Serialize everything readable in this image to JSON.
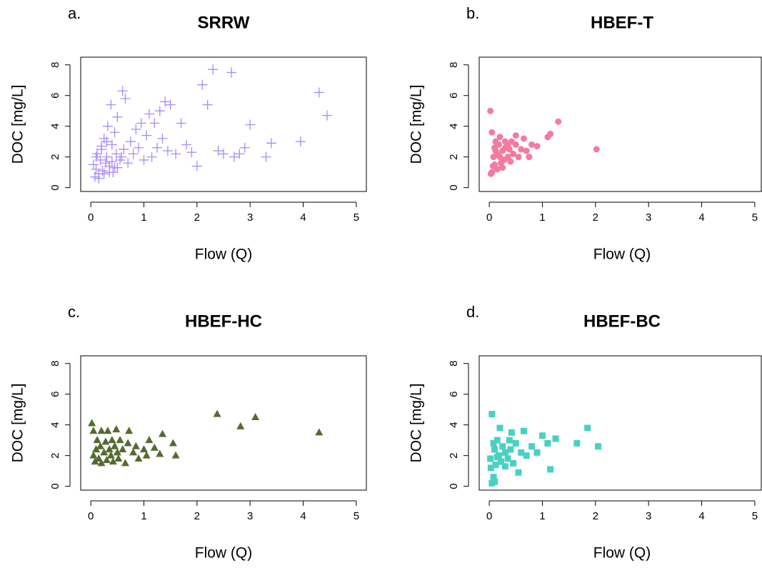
{
  "chart_data": [
    {
      "type": "scatter",
      "label": "a.",
      "title": "SRRW",
      "xlabel": "Flow (Q)",
      "ylabel": "DOC [mg/L]",
      "color": "#a98bf5",
      "marker": "plus",
      "xlim": [
        -0.19,
        5.19
      ],
      "ylim": [
        -0.25,
        8.5
      ],
      "xticks": [
        0,
        1,
        2,
        3,
        4,
        5
      ],
      "yticks": [
        0,
        2,
        4,
        6,
        8
      ],
      "x": [
        0.05,
        0.1,
        0.12,
        0.15,
        0.18,
        0.2,
        0.22,
        0.25,
        0.28,
        0.3,
        0.32,
        0.35,
        0.38,
        0.4,
        0.42,
        0.45,
        0.48,
        0.5,
        0.55,
        0.6,
        0.62,
        0.65,
        0.7,
        0.75,
        0.8,
        0.85,
        0.9,
        0.95,
        1.0,
        1.05,
        1.1,
        1.15,
        1.2,
        1.25,
        1.3,
        1.35,
        1.4,
        1.45,
        1.5,
        1.6,
        1.7,
        1.8,
        1.9,
        2.0,
        2.1,
        2.2,
        2.3,
        2.4,
        2.5,
        2.65,
        2.7,
        2.8,
        2.9,
        3.0,
        3.3,
        3.4,
        3.95,
        4.3,
        4.45,
        0.08,
        0.15,
        0.25,
        0.35,
        0.45,
        0.58,
        0.3,
        0.2,
        0.1,
        0.4,
        0.5
      ],
      "y": [
        1.5,
        1.2,
        2.2,
        0.9,
        1.8,
        2.5,
        1.1,
        3.2,
        1.6,
        2.0,
        4.0,
        1.4,
        5.4,
        2.8,
        1.0,
        3.6,
        2.2,
        4.6,
        1.8,
        6.3,
        2.5,
        5.8,
        1.6,
        3.0,
        2.2,
        3.8,
        2.6,
        4.2,
        1.8,
        3.4,
        4.8,
        2.0,
        4.2,
        2.6,
        5.0,
        3.2,
        5.6,
        2.4,
        5.4,
        2.2,
        4.2,
        2.8,
        2.3,
        1.4,
        6.7,
        5.4,
        7.7,
        2.4,
        2.2,
        7.5,
        2.0,
        2.2,
        2.6,
        4.1,
        2.0,
        2.9,
        3.0,
        6.2,
        4.7,
        0.7,
        0.6,
        0.9,
        1.0,
        1.3,
        2.0,
        3.0,
        2.7,
        2.0,
        1.7,
        1.3
      ]
    },
    {
      "type": "scatter",
      "label": "b.",
      "title": "HBEF-T",
      "xlabel": "Flow (Q)",
      "ylabel": "DOC [mg/L]",
      "color": "#f47aa0",
      "marker": "circle",
      "xlim": [
        -0.19,
        5.19
      ],
      "ylim": [
        -0.25,
        8.5
      ],
      "xticks": [
        0,
        1,
        2,
        3,
        4,
        5
      ],
      "yticks": [
        0,
        2,
        4,
        6,
        8
      ],
      "x": [
        0.02,
        0.05,
        0.05,
        0.08,
        0.1,
        0.1,
        0.12,
        0.15,
        0.15,
        0.18,
        0.2,
        0.2,
        0.22,
        0.25,
        0.28,
        0.3,
        0.3,
        0.35,
        0.38,
        0.4,
        0.42,
        0.45,
        0.5,
        0.5,
        0.55,
        0.6,
        0.65,
        0.7,
        0.75,
        0.8,
        0.9,
        1.1,
        1.15,
        1.3,
        2.02,
        0.03,
        0.07,
        0.12,
        0.25,
        0.35
      ],
      "y": [
        5.0,
        3.6,
        1.0,
        2.0,
        2.6,
        1.5,
        3.0,
        2.2,
        1.2,
        2.8,
        2.0,
        3.3,
        1.6,
        2.4,
        1.8,
        2.6,
        3.0,
        2.0,
        2.5,
        1.7,
        3.0,
        2.2,
        2.8,
        3.4,
        2.0,
        2.5,
        3.2,
        2.4,
        2.0,
        2.8,
        2.7,
        3.3,
        3.5,
        4.3,
        2.5,
        0.9,
        1.4,
        2.4,
        1.3,
        2.8
      ]
    },
    {
      "type": "scatter",
      "label": "c.",
      "title": "HBEF-HC",
      "xlabel": "Flow (Q)",
      "ylabel": "DOC [mg/L]",
      "color": "#556b2f",
      "marker": "triangle",
      "xlim": [
        -0.19,
        5.19
      ],
      "ylim": [
        -0.25,
        8.5
      ],
      "xticks": [
        0,
        1,
        2,
        3,
        4,
        5
      ],
      "yticks": [
        0,
        2,
        4,
        6,
        8
      ],
      "x": [
        0.02,
        0.05,
        0.05,
        0.08,
        0.1,
        0.12,
        0.15,
        0.18,
        0.2,
        0.2,
        0.25,
        0.28,
        0.3,
        0.32,
        0.35,
        0.38,
        0.4,
        0.42,
        0.45,
        0.48,
        0.5,
        0.52,
        0.55,
        0.6,
        0.65,
        0.7,
        0.72,
        0.8,
        0.85,
        0.9,
        1.0,
        1.05,
        1.1,
        1.2,
        1.3,
        1.35,
        1.55,
        1.6,
        2.38,
        2.82,
        3.1,
        4.3
      ],
      "y": [
        4.1,
        3.6,
        2.0,
        1.6,
        2.4,
        3.0,
        1.8,
        2.6,
        3.6,
        1.5,
        2.2,
        2.9,
        1.7,
        3.6,
        2.4,
        2.0,
        3.0,
        1.6,
        2.6,
        3.7,
        2.2,
        1.8,
        3.0,
        2.4,
        1.5,
        2.8,
        3.6,
        2.2,
        2.6,
        1.8,
        2.4,
        2.0,
        3.0,
        2.5,
        2.1,
        3.4,
        2.8,
        2.0,
        4.7,
        3.9,
        4.5,
        3.5
      ]
    },
    {
      "type": "scatter",
      "label": "d.",
      "title": "HBEF-BC",
      "xlabel": "Flow (Q)",
      "ylabel": "DOC [mg/L]",
      "color": "#48d1c2",
      "marker": "square",
      "xlim": [
        -0.19,
        5.19
      ],
      "ylim": [
        -0.25,
        8.5
      ],
      "xticks": [
        0,
        1,
        2,
        3,
        4,
        5
      ],
      "yticks": [
        0,
        2,
        4,
        6,
        8
      ],
      "x": [
        0.05,
        0.02,
        0.05,
        0.08,
        0.1,
        0.1,
        0.12,
        0.15,
        0.18,
        0.2,
        0.22,
        0.25,
        0.3,
        0.35,
        0.38,
        0.4,
        0.42,
        0.45,
        0.5,
        0.55,
        0.6,
        0.65,
        0.7,
        0.8,
        0.9,
        1.0,
        1.1,
        1.15,
        1.25,
        1.65,
        1.85,
        2.05,
        0.03,
        0.08,
        0.15,
        0.3
      ],
      "y": [
        4.7,
        1.8,
        0.2,
        0.6,
        0.3,
        2.4,
        1.4,
        3.0,
        2.0,
        3.8,
        1.6,
        2.6,
        2.2,
        1.8,
        3.0,
        2.4,
        3.5,
        1.5,
        2.8,
        0.9,
        2.2,
        3.6,
        2.0,
        2.6,
        2.2,
        3.3,
        2.8,
        1.1,
        3.1,
        2.8,
        3.8,
        2.6,
        1.2,
        2.8,
        1.9,
        1.3
      ]
    }
  ]
}
